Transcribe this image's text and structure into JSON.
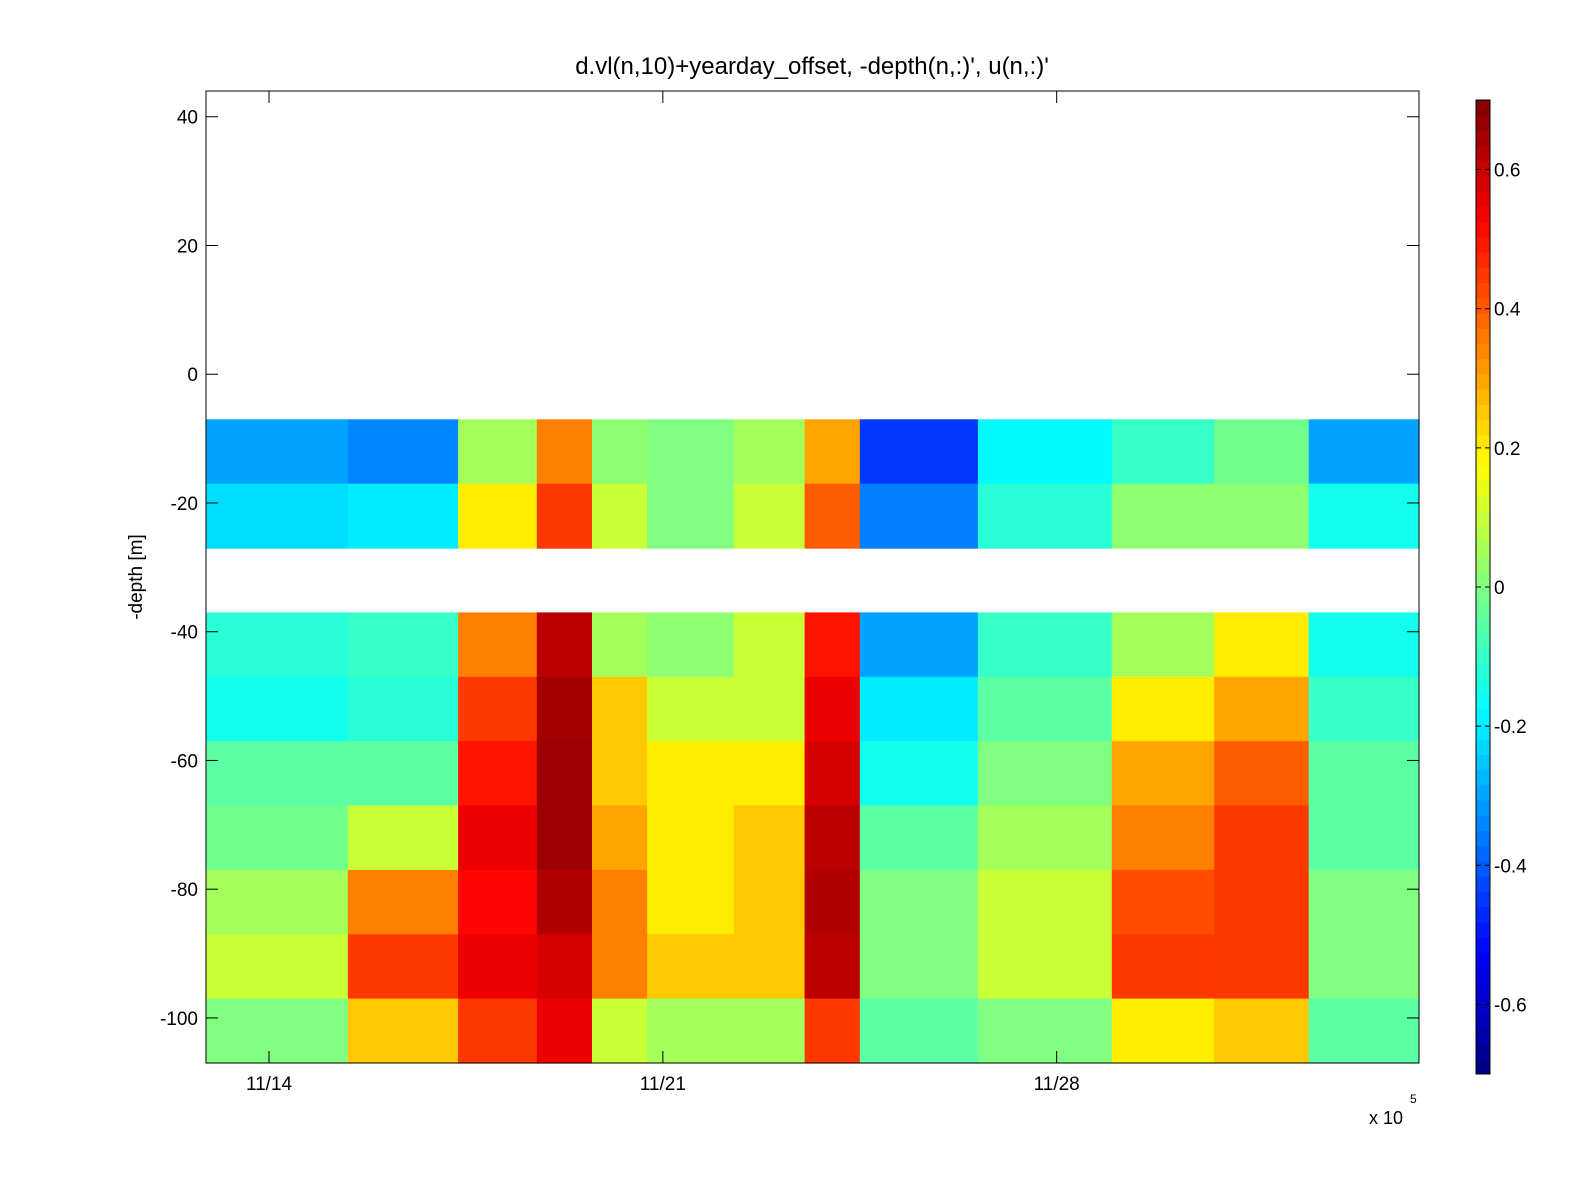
{
  "chart_data": {
    "type": "heatmap",
    "title": "d.vl(n,10)+yearday_offset, -depth(n,:)', u(n,:)'",
    "xlabel": "",
    "ylabel": "-depth [m]",
    "x_multiplier_label": "x 10",
    "x_multiplier_exponent": "5",
    "xlim_days": [
      -1.6,
      29.2
    ],
    "ylim": [
      -107,
      44
    ],
    "x_ticks": [
      {
        "day": 0,
        "label": "11/14"
      },
      {
        "day": 10,
        "label": "11/21"
      },
      {
        "day": 20,
        "label": "11/28"
      }
    ],
    "y_ticks": [
      40,
      20,
      0,
      -20,
      -40,
      -60,
      -80,
      -100
    ],
    "colorbar": {
      "colormap": "jet",
      "clim": [
        -0.7,
        0.7
      ],
      "ticks": [
        0.6,
        0.4,
        0.2,
        0,
        -0.2,
        -0.4,
        -0.6
      ],
      "tick_labels": [
        "0.6",
        "0.4",
        "0.2",
        "0",
        "-0.2",
        "-0.4",
        "-0.6"
      ]
    },
    "depth_bins": [
      {
        "top": -7,
        "bottom": -17
      },
      {
        "top": -17,
        "bottom": -27
      },
      {
        "top": -37,
        "bottom": -47
      },
      {
        "top": -47,
        "bottom": -57
      },
      {
        "top": -57,
        "bottom": -67
      },
      {
        "top": -67,
        "bottom": -77
      },
      {
        "top": -77,
        "bottom": -87
      },
      {
        "top": -87,
        "bottom": -97
      },
      {
        "top": -97,
        "bottom": -107
      }
    ],
    "time_segments_days": [
      -1.6,
      2.0,
      4.8,
      6.8,
      8.2,
      9.6,
      11.8,
      13.6,
      15.0,
      18.0,
      21.4,
      24.0,
      26.4,
      29.2
    ],
    "u_values": [
      [
        -0.3,
        -0.34,
        0.05,
        0.35,
        0.02,
        0.0,
        0.05,
        0.3,
        -0.45,
        -0.18,
        -0.1,
        -0.02,
        -0.3
      ],
      [
        -0.22,
        -0.2,
        0.2,
        0.45,
        0.1,
        0.0,
        0.1,
        0.4,
        -0.35,
        -0.12,
        0.02,
        0.02,
        -0.15
      ],
      [
        -0.12,
        -0.1,
        0.35,
        0.62,
        0.05,
        0.02,
        0.1,
        0.5,
        -0.3,
        -0.1,
        0.05,
        0.2,
        -0.15
      ],
      [
        -0.15,
        -0.12,
        0.45,
        0.65,
        0.25,
        0.1,
        0.1,
        0.55,
        -0.2,
        -0.05,
        0.2,
        0.3,
        -0.1
      ],
      [
        -0.05,
        -0.05,
        0.5,
        0.66,
        0.25,
        0.2,
        0.2,
        0.58,
        -0.15,
        0.0,
        0.3,
        0.4,
        -0.05
      ],
      [
        -0.02,
        0.1,
        0.55,
        0.66,
        0.3,
        0.2,
        0.25,
        0.62,
        -0.05,
        0.05,
        0.35,
        0.45,
        -0.05
      ],
      [
        0.05,
        0.35,
        0.52,
        0.63,
        0.35,
        0.2,
        0.25,
        0.63,
        0.0,
        0.1,
        0.42,
        0.45,
        0.0
      ],
      [
        0.1,
        0.45,
        0.55,
        0.58,
        0.35,
        0.25,
        0.25,
        0.62,
        0.0,
        0.1,
        0.45,
        0.45,
        0.0
      ],
      [
        0.0,
        0.25,
        0.45,
        0.55,
        0.1,
        0.05,
        0.05,
        0.45,
        -0.05,
        0.0,
        0.2,
        0.25,
        -0.05
      ]
    ]
  }
}
